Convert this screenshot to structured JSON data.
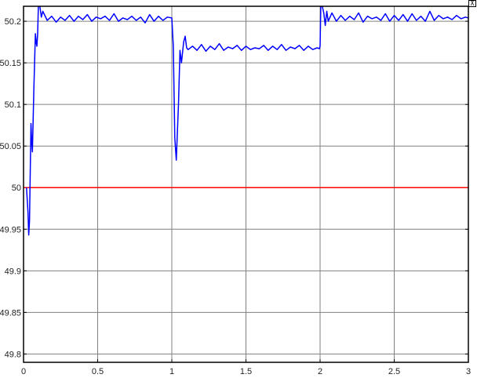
{
  "chart_data": {
    "type": "line",
    "title": "",
    "xlabel": "",
    "ylabel": "",
    "xlim": [
      0,
      3
    ],
    "ylim": [
      49.79,
      50.218
    ],
    "grid": true,
    "xticks": [
      0,
      0.5,
      1,
      1.5,
      2,
      2.5,
      3
    ],
    "xtick_labels": [
      "0",
      "0.5",
      "1",
      "1.5",
      "2",
      "2.5",
      "3"
    ],
    "yticks": [
      49.8,
      49.85,
      49.9,
      49.95,
      50,
      50.05,
      50.1,
      50.15,
      50.2
    ],
    "ytick_labels": [
      "49.8",
      "49.85",
      "49.9",
      "49.95",
      "50",
      "50.05",
      "50.1",
      "50.15",
      "50.2"
    ],
    "background": "#ffffff",
    "grid_color": "#808080",
    "series": [
      {
        "color": "#ff0000",
        "x": [
          0,
          3
        ],
        "y": [
          50,
          50
        ]
      },
      {
        "color": "#0000ff",
        "x": [
          0.02,
          0.03,
          0.035,
          0.04,
          0.05,
          0.055,
          0.06,
          0.07,
          0.08,
          0.085,
          0.09,
          0.095,
          0.1,
          0.11,
          0.12,
          0.13,
          0.16,
          0.19,
          0.22,
          0.25,
          0.28,
          0.31,
          0.34,
          0.37,
          0.4,
          0.43,
          0.46,
          0.49,
          0.52,
          0.55,
          0.58,
          0.61,
          0.64,
          0.67,
          0.7,
          0.73,
          0.76,
          0.79,
          0.82,
          0.85,
          0.88,
          0.91,
          0.94,
          0.97,
          1.0,
          1.01,
          1.02,
          1.03,
          1.045,
          1.055,
          1.065,
          1.08,
          1.09,
          1.1,
          1.11,
          1.14,
          1.17,
          1.2,
          1.23,
          1.26,
          1.29,
          1.32,
          1.35,
          1.38,
          1.41,
          1.44,
          1.47,
          1.5,
          1.53,
          1.56,
          1.59,
          1.62,
          1.65,
          1.68,
          1.71,
          1.74,
          1.77,
          1.8,
          1.83,
          1.86,
          1.89,
          1.92,
          1.95,
          1.98,
          1.995,
          2.0,
          2.005,
          2.015,
          2.025,
          2.035,
          2.045,
          2.055,
          2.08,
          2.11,
          2.14,
          2.17,
          2.2,
          2.23,
          2.26,
          2.29,
          2.32,
          2.35,
          2.38,
          2.41,
          2.44,
          2.47,
          2.5,
          2.53,
          2.56,
          2.59,
          2.62,
          2.65,
          2.68,
          2.71,
          2.74,
          2.77,
          2.8,
          2.83,
          2.86,
          2.89,
          2.92,
          2.95,
          2.98,
          3.0
        ],
        "y": [
          50,
          49.97,
          49.943,
          49.96,
          50.077,
          50.055,
          50.043,
          50.12,
          50.185,
          50.175,
          50.17,
          50.185,
          50.218,
          50.218,
          50.205,
          50.212,
          50.201,
          50.206,
          50.199,
          50.205,
          50.201,
          50.207,
          50.2,
          50.206,
          50.202,
          50.208,
          50.2,
          50.205,
          50.203,
          50.206,
          50.201,
          50.209,
          50.2,
          50.204,
          50.202,
          50.206,
          50.201,
          50.205,
          50.198,
          50.208,
          50.2,
          50.206,
          50.201,
          50.205,
          50.204,
          50.17,
          50.06,
          50.033,
          50.1,
          50.165,
          50.15,
          50.175,
          50.182,
          50.168,
          50.166,
          50.17,
          50.165,
          50.172,
          50.164,
          50.17,
          50.166,
          50.173,
          50.165,
          50.169,
          50.167,
          50.171,
          50.165,
          50.17,
          50.166,
          50.168,
          50.167,
          50.171,
          50.165,
          50.17,
          50.166,
          50.172,
          50.165,
          50.169,
          50.167,
          50.171,
          50.165,
          50.17,
          50.166,
          50.168,
          50.167,
          50.17,
          50.218,
          50.218,
          50.21,
          50.195,
          50.212,
          50.2,
          50.21,
          50.2,
          50.207,
          50.201,
          50.206,
          50.202,
          50.21,
          50.199,
          50.206,
          50.203,
          50.205,
          50.201,
          50.209,
          50.2,
          50.207,
          50.201,
          50.208,
          50.2,
          50.209,
          50.201,
          50.206,
          50.2,
          50.212,
          50.201,
          50.207,
          50.203,
          50.205,
          50.202,
          50.207,
          50.203,
          50.205,
          50.204
        ]
      }
    ]
  },
  "toolbar": {
    "autoscale_icon": "axes-restore-icon",
    "autoscale_glyph": "⊼"
  }
}
